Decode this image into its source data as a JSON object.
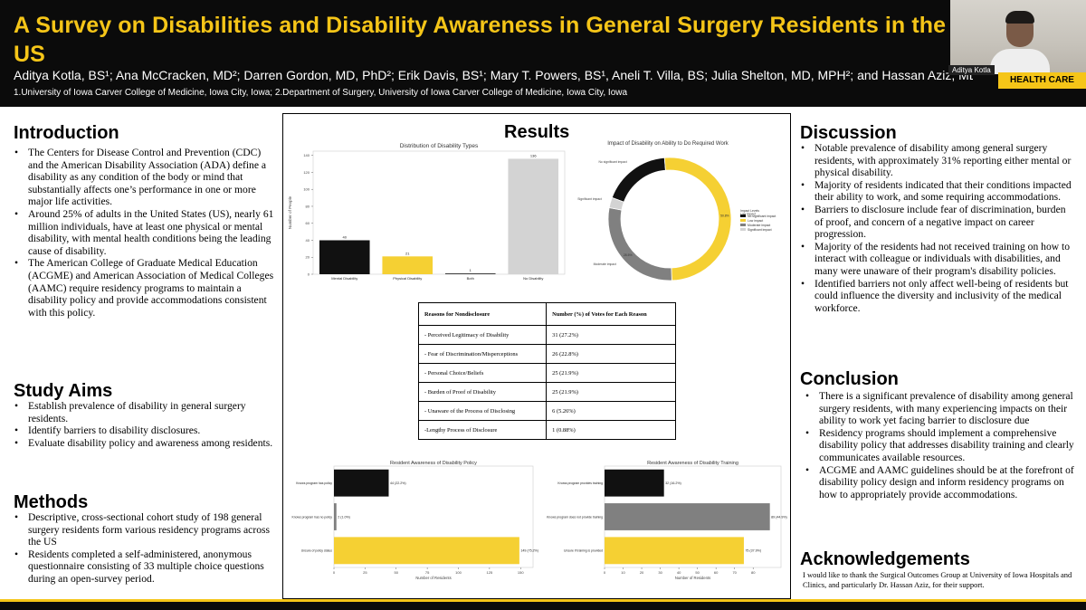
{
  "header": {
    "title": "A Survey on Disabilities and Disability Awareness in General Surgery Residents in the US",
    "authors": "Aditya Kotla, BS¹; Ana McCracken, MD²; Darren Gordon, MD, PhD²; Erik Davis, BS¹; Mary T. Powers, BS¹, Aneli T. Villa, BS; Julia Shelton, MD, MPH²; and Hassan Aziz, MD²",
    "affiliations": "1.University of Iowa Carver College of Medicine, Iowa City, Iowa; 2.Department of Surgery, University of Iowa Carver College of Medicine, Iowa City, Iowa",
    "video_name": "Aditya Kotla",
    "badge": "HEALTH CARE"
  },
  "introduction": {
    "heading": "Introduction",
    "bullets": [
      "The Centers for Disease Control and Prevention (CDC) and the American Disability Association (ADA) define a disability as any condition of the body or mind that substantially affects one’s performance in one or more major life activities.",
      "Around 25% of adults in the United States (US), nearly 61 million individuals, have at least one physical or mental disability, with mental health conditions being the leading cause of disability.",
      "The American College of Graduate Medical Education (ACGME) and American Association of Medical Colleges (AAMC) require residency programs to maintain a disability policy and provide accommodations consistent with this policy."
    ]
  },
  "study_aims": {
    "heading": "Study Aims",
    "bullets": [
      "Establish prevalence of disability in general surgery residents.",
      "Identify barriers to disability disclosures.",
      "Evaluate disability policy and awareness among residents."
    ]
  },
  "methods": {
    "heading": "Methods",
    "bullets": [
      "Descriptive, cross-sectional cohort study of 198 general surgery residents form various residency programs across the US",
      "Residents completed a self-administered, anonymous questionnaire consisting of 33 multiple choice questions during an open-survey period."
    ]
  },
  "results": {
    "heading": "Results",
    "table": {
      "headers": [
        "Reasons for Nondisclosure",
        "Number (%) of Votes for Each Reason"
      ],
      "rows": [
        [
          "- Perceived Legitimacy of Disability",
          "31 (27.2%)"
        ],
        [
          "- Fear of Discrimination/Misperceptions",
          "26 (22.8%)"
        ],
        [
          "- Personal Choice/Beliefs",
          "25 (21.9%)"
        ],
        [
          "- Burden of Proof of Disability",
          "25 (21.9%)"
        ],
        [
          "- Unaware of the Process of Disclosing",
          "6 (5.26%)"
        ],
        [
          "-Lengthy Process of Disclosure",
          "1 (0.88%)"
        ]
      ]
    }
  },
  "chart_data": [
    {
      "type": "bar",
      "title": "Distribution of Disability Types",
      "ylabel": "Number of People",
      "xlabel": "",
      "categories": [
        "Mental Disability",
        "Physical Disability",
        "Both",
        "No Disability"
      ],
      "values": [
        40,
        21,
        1,
        136
      ],
      "colors": [
        "#111111",
        "#f5d033",
        "#333333",
        "#d3d3d3"
      ],
      "ylim": [
        0,
        145
      ],
      "yticks": [
        0,
        20,
        40,
        60,
        80,
        100,
        120,
        140
      ],
      "grid": false
    },
    {
      "type": "pie",
      "donut": true,
      "title": "Impact of Disability on Ability to Do Required Work",
      "labels": [
        "No significant impact",
        "Low impact",
        "Moderate impact",
        "Significant impact"
      ],
      "values": [
        18.0,
        50.8,
        28.5,
        2.7
      ],
      "colors": [
        "#111111",
        "#f5d033",
        "#808080",
        "#d3d3d3"
      ],
      "slice_labels": [
        "No significant impact",
        "Low impact",
        "Moderate impact",
        "Significant impact"
      ],
      "percent_labels": [
        "",
        "50.8%",
        "28.5%",
        ""
      ],
      "legend_title": "Impact Levels",
      "legend_position": "right"
    },
    {
      "type": "bar",
      "orientation": "horizontal",
      "title": "Resident Awareness of Disability Policy",
      "xlabel": "Number of Residents",
      "categories": [
        "Knows program has policy",
        "Knows program has no policy",
        "Unsure of policy status"
      ],
      "values": [
        44,
        2,
        149
      ],
      "value_labels": [
        "44 (22.2%)",
        "2 (1.0%)",
        "149 (75.2%)"
      ],
      "colors": [
        "#111111",
        "#808080",
        "#f5d033"
      ],
      "xlim": [
        0,
        160
      ],
      "xticks": [
        0,
        25,
        50,
        75,
        100,
        125,
        150
      ]
    },
    {
      "type": "bar",
      "orientation": "horizontal",
      "title": "Resident Awareness of Disability Training",
      "xlabel": "Number of Residents",
      "categories": [
        "Knows program provides training",
        "Knows program does not provide training",
        "Unsure if training is provided"
      ],
      "values": [
        32,
        89,
        75
      ],
      "value_labels": [
        "32 (16.2%)",
        "89 (44.9%)",
        "75 (37.9%)"
      ],
      "colors": [
        "#111111",
        "#808080",
        "#f5d033"
      ],
      "xlim": [
        0,
        95
      ],
      "xticks": [
        0,
        10,
        20,
        30,
        40,
        50,
        60,
        70,
        80
      ]
    }
  ],
  "discussion": {
    "heading": "Discussion",
    "bullets": [
      "Notable prevalence of disability among general surgery residents, with approximately 31% reporting either mental or physical disability.",
      "Majority of residents indicated that their conditions impacted their ability to work, and some requiring accommodations.",
      "Barriers to disclosure include fear of discrimination, burden of proof, and concern of a negative impact on career progression.",
      "Majority of the residents had not received training on how to interact with colleague or individuals with disabilities, and many were unaware of their program's disability policies.",
      "Identified barriers not only affect well-being of residents but could influence the diversity and inclusivity of the medical workforce."
    ]
  },
  "conclusion": {
    "heading": "Conclusion",
    "bullets": [
      "There is a significant prevalence of disability among general surgery residents, with many experiencing impacts on their ability to work yet facing barrier to disclosure due",
      "Residency programs should implement a comprehensive disability policy that addresses disability training and clearly communicates available resources.",
      "ACGME and AAMC guidelines should be at the forefront of disability policy design and inform residency programs on how to appropriately provide accommodations."
    ]
  },
  "acknowledgements": {
    "heading": "Acknowledgements",
    "text": "I would like to thank the Surgical Outcomes Group at University of Iowa Hospitals and Clinics, and particularly Dr. Hassan Aziz, for their support."
  }
}
